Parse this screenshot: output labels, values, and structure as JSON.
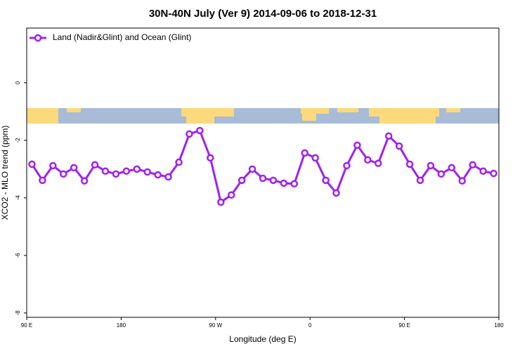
{
  "chart_data": {
    "type": "line",
    "title": "30N-40N July (Ver 9)   2014-09-06 to 2018-12-31",
    "x_label": "Longitude (deg E)",
    "y_label": "XCO2 - MLO trend (ppm)",
    "x": [
      95,
      105,
      115,
      125,
      135,
      145,
      155,
      165,
      175,
      185,
      195,
      205,
      215,
      225,
      235,
      245,
      255,
      265,
      275,
      285,
      295,
      305,
      315,
      325,
      335,
      345,
      355,
      365,
      375,
      385,
      395,
      405,
      415,
      425,
      435,
      445,
      455,
      465,
      475,
      485,
      495,
      505,
      515,
      525,
      535
    ],
    "series": [
      {
        "name": "Land (Nadir&Glint) and Ocean (Glint)",
        "color": "#a020f0",
        "values": [
          -2.83,
          -3.39,
          -2.88,
          -3.17,
          -2.95,
          -3.41,
          -2.85,
          -3.07,
          -3.17,
          -3.07,
          -3.0,
          -3.1,
          -3.2,
          -3.27,
          -2.76,
          -1.78,
          -1.66,
          -2.61,
          -4.15,
          -3.9,
          -3.39,
          -3.0,
          -3.32,
          -3.39,
          -3.49,
          -3.51,
          -2.44,
          -2.61,
          -3.39,
          -3.83,
          -2.88,
          -2.17,
          -2.68,
          -2.8,
          -1.85,
          -2.2,
          -2.83,
          -3.39,
          -2.88,
          -3.17,
          -2.95,
          -3.41,
          -2.85,
          -3.07,
          -3.15
        ]
      }
    ],
    "xlim": [
      90,
      540
    ],
    "ylim": [
      -8.15,
      1.9
    ],
    "xticks": [
      {
        "value": 90,
        "label": "90 E"
      },
      180,
      {
        "value": 270,
        "label": "90 W"
      },
      {
        "value": 360,
        "label": "0"
      },
      {
        "value": 450,
        "label": "90 E"
      },
      {
        "value": 540,
        "label": "180"
      }
    ],
    "yticks": [
      0,
      -2,
      -4,
      -6,
      -8
    ],
    "legend": "top-left"
  }
}
